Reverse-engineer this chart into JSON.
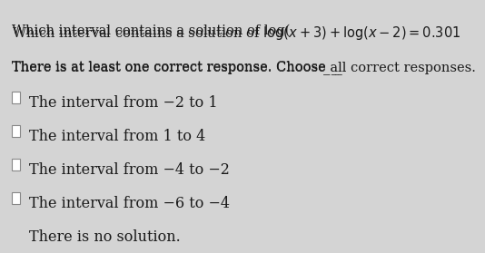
{
  "title_line1": "Which interval contains a solution of log(",
  "title_math": "x",
  "bg_color": "#e8e8e8",
  "question": "Which interval contains a solution of log(x+3) + log(x-2) = 0.301",
  "instruction": "There is at least one correct response. Choose all correct responses.",
  "options": [
    "The interval from −2 to 1",
    "The interval from 1 to 4",
    "The interval from −4 to −2",
    "The interval from −6 to −4",
    "There is no solution."
  ],
  "font_size_question": 10.5,
  "font_size_instruction": 10.5,
  "font_size_options": 11.5,
  "text_color": "#1a1a1a",
  "checkbox_color": "#888888",
  "bg_color_fig": "#d4d4d4"
}
